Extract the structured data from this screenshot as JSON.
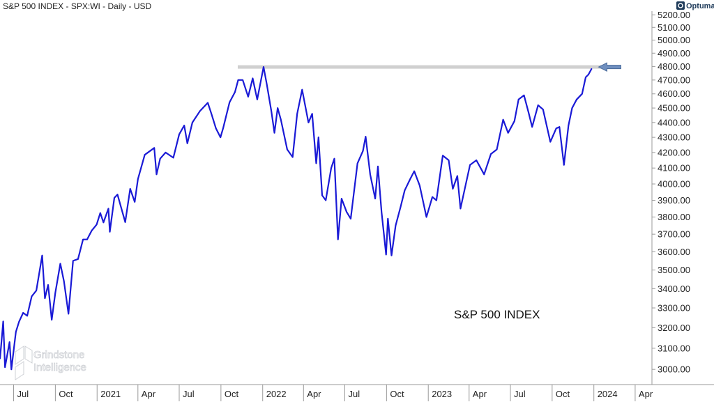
{
  "header": {
    "title": "S&P 500 INDEX - SPX:WI - Daily - USD",
    "brand": "Optuma"
  },
  "watermark": {
    "line1": "Grindstone",
    "line2": "Intelligence"
  },
  "colors": {
    "series": "#1a1ad6",
    "resistance": "#d0d0d0",
    "arrow": "#6f8fbf",
    "brand": "#1f3b5a"
  },
  "chart_data": {
    "type": "line",
    "title": "S&P 500 INDEX - SPX:WI - Daily - USD",
    "annotation": "S&P 500 INDEX",
    "xlabel": "",
    "ylabel": "",
    "x_ticks": [
      "Jul",
      "Oct",
      "2021",
      "Apr",
      "Jul",
      "Oct",
      "2022",
      "Apr",
      "Jul",
      "Oct",
      "2023",
      "Apr",
      "Jul",
      "Oct",
      "2024",
      "Apr"
    ],
    "y_ticks": [
      "3000.00",
      "3100.00",
      "3200.00",
      "3300.00",
      "3400.00",
      "3500.00",
      "3600.00",
      "3700.00",
      "3800.00",
      "3900.00",
      "4000.00",
      "4100.00",
      "4200.00",
      "4300.00",
      "4400.00",
      "4500.00",
      "4600.00",
      "4700.00",
      "4800.00",
      "4900.00",
      "5000.00",
      "5100.00",
      "5200.00"
    ],
    "ylim": [
      2930,
      5230
    ],
    "y_scale": "log",
    "xlim": [
      "2020-06-01",
      "2024-05-08"
    ],
    "grid": false,
    "resistance_level": 4796,
    "series": [
      {
        "x": [
          "2020-06-01",
          "2020-06-08",
          "2020-06-12",
          "2020-06-22",
          "2020-06-26",
          "2020-07-06",
          "2020-07-13",
          "2020-07-22",
          "2020-07-31",
          "2020-08-10",
          "2020-08-20",
          "2020-09-02",
          "2020-09-08",
          "2020-09-15",
          "2020-09-23",
          "2020-10-01",
          "2020-10-12",
          "2020-10-20",
          "2020-10-30",
          "2020-11-09",
          "2020-11-20",
          "2020-12-01",
          "2020-12-10",
          "2020-12-20",
          "2020-12-31",
          "2021-01-08",
          "2021-01-15",
          "2021-01-26",
          "2021-01-29",
          "2021-02-08",
          "2021-02-15",
          "2021-03-04",
          "2021-03-15",
          "2021-03-25",
          "2021-04-01",
          "2021-04-16",
          "2021-05-07",
          "2021-05-12",
          "2021-05-20",
          "2021-06-01",
          "2021-06-18",
          "2021-07-01",
          "2021-07-12",
          "2021-07-19",
          "2021-07-30",
          "2021-08-16",
          "2021-09-02",
          "2021-09-10",
          "2021-09-20",
          "2021-09-30",
          "2021-10-06",
          "2021-10-20",
          "2021-11-01",
          "2021-11-08",
          "2021-11-18",
          "2021-11-30",
          "2021-12-10",
          "2021-12-20",
          "2022-01-03",
          "2022-01-10",
          "2022-01-20",
          "2022-01-27",
          "2022-02-03",
          "2022-02-10",
          "2022-02-24",
          "2022-03-08",
          "2022-03-18",
          "2022-03-29",
          "2022-04-12",
          "2022-04-20",
          "2022-04-29",
          "2022-05-04",
          "2022-05-12",
          "2022-05-20",
          "2022-06-01",
          "2022-06-08",
          "2022-06-16",
          "2022-06-24",
          "2022-07-05",
          "2022-07-14",
          "2022-07-29",
          "2022-08-10",
          "2022-08-16",
          "2022-08-26",
          "2022-09-06",
          "2022-09-12",
          "2022-09-20",
          "2022-09-30",
          "2022-10-04",
          "2022-10-12",
          "2022-10-21",
          "2022-11-01",
          "2022-11-10",
          "2022-11-22",
          "2022-12-01",
          "2022-12-13",
          "2022-12-28",
          "2023-01-10",
          "2023-01-19",
          "2023-02-02",
          "2023-02-15",
          "2023-02-24",
          "2023-03-06",
          "2023-03-13",
          "2023-03-24",
          "2023-04-03",
          "2023-04-17",
          "2023-05-04",
          "2023-05-19",
          "2023-06-01",
          "2023-06-15",
          "2023-06-26",
          "2023-07-10",
          "2023-07-19",
          "2023-07-31",
          "2023-08-10",
          "2023-08-18",
          "2023-08-31",
          "2023-09-11",
          "2023-09-27",
          "2023-10-10",
          "2023-10-17",
          "2023-10-27",
          "2023-11-06",
          "2023-11-14",
          "2023-11-24",
          "2023-12-06",
          "2023-12-14",
          "2023-12-20",
          "2023-12-27"
        ],
        "values": [
          3050,
          3232,
          3010,
          3130,
          3000,
          3180,
          3230,
          3275,
          3260,
          3360,
          3390,
          3580,
          3350,
          3420,
          3240,
          3380,
          3535,
          3440,
          3270,
          3550,
          3560,
          3670,
          3670,
          3720,
          3756,
          3824,
          3768,
          3850,
          3714,
          3915,
          3935,
          3770,
          3970,
          3890,
          4030,
          4185,
          4230,
          4060,
          4160,
          4200,
          4166,
          4320,
          4380,
          4260,
          4400,
          4480,
          4537,
          4460,
          4360,
          4300,
          4363,
          4540,
          4613,
          4700,
          4700,
          4580,
          4712,
          4560,
          4796,
          4670,
          4480,
          4330,
          4500,
          4420,
          4220,
          4170,
          4460,
          4630,
          4400,
          4460,
          4130,
          4300,
          3930,
          3900,
          4100,
          4160,
          3670,
          3910,
          3830,
          3790,
          4130,
          4210,
          4305,
          4060,
          3910,
          4110,
          3830,
          3585,
          3790,
          3580,
          3750,
          3860,
          3960,
          4030,
          4080,
          3990,
          3800,
          3920,
          3900,
          4180,
          4150,
          3970,
          4050,
          3850,
          3990,
          4120,
          4150,
          4060,
          4190,
          4220,
          4420,
          4330,
          4410,
          4560,
          4590,
          4470,
          4370,
          4520,
          4490,
          4270,
          4360,
          4370,
          4120,
          4380,
          4500,
          4560,
          4600,
          4720,
          4740,
          4783
        ]
      }
    ]
  }
}
